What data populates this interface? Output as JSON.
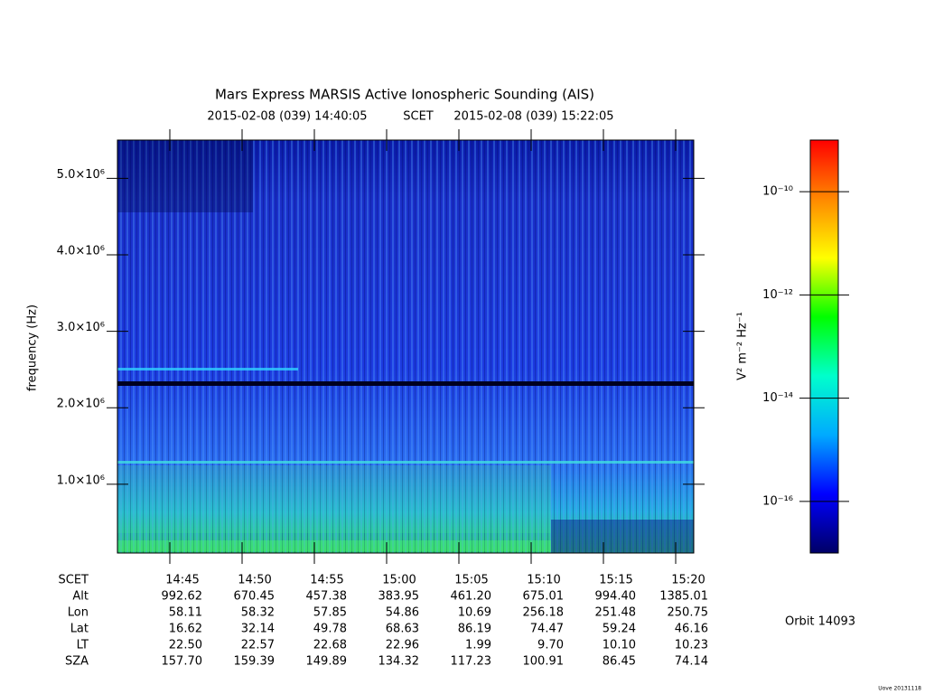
{
  "chart_data": {
    "type": "spectrogram",
    "title": "Mars Express MARSIS Active Ionospheric Sounding (AIS)",
    "start_time": "2015-02-08 (039) 14:40:05",
    "time_label": "SCET",
    "end_time": "2015-02-08 (039) 15:22:05",
    "ylabel": "frequency (Hz)",
    "ylim": [
      100000,
      5500000
    ],
    "yticks": [
      {
        "value": 1000000,
        "label": "1.0×10⁶"
      },
      {
        "value": 2000000,
        "label": "2.0×10⁶"
      },
      {
        "value": 3000000,
        "label": "3.0×10⁶"
      },
      {
        "value": 4000000,
        "label": "4.0×10⁶"
      },
      {
        "value": 5000000,
        "label": "5.0×10⁶"
      }
    ],
    "xticks": [
      "14:45",
      "14:50",
      "14:55",
      "15:00",
      "15:05",
      "15:10",
      "15:15",
      "15:20"
    ],
    "colorbar": {
      "label": "V² m⁻² Hz⁻¹",
      "log_scale": true,
      "clim": [
        1e-17,
        1e-09
      ],
      "ticks": [
        {
          "value": 1e-10,
          "label": "10⁻¹⁰"
        },
        {
          "value": 1e-12,
          "label": "10⁻¹²"
        },
        {
          "value": 1e-14,
          "label": "10⁻¹⁴"
        },
        {
          "value": 1e-16,
          "label": "10⁻¹⁶"
        }
      ],
      "colors": [
        "#000066",
        "#0000ff",
        "#00aaff",
        "#00ffcc",
        "#00ff00",
        "#ffff00",
        "#ff8800",
        "#ff0000"
      ]
    },
    "ephemeris": {
      "header": "SCET",
      "rows": [
        {
          "label": "Alt",
          "values": [
            "992.62",
            "670.45",
            "457.38",
            "383.95",
            "461.20",
            "675.01",
            "994.40",
            "1385.01"
          ]
        },
        {
          "label": "Lon",
          "values": [
            "58.11",
            "58.32",
            "57.85",
            "54.86",
            "10.69",
            "256.18",
            "251.48",
            "250.75"
          ]
        },
        {
          "label": "Lat",
          "values": [
            "16.62",
            "32.14",
            "49.78",
            "68.63",
            "86.19",
            "74.47",
            "59.24",
            "46.16"
          ]
        },
        {
          "label": "LT",
          "values": [
            "22.50",
            "22.57",
            "22.68",
            "22.96",
            "1.99",
            "9.70",
            "10.10",
            "10.23"
          ]
        },
        {
          "label": "SZA",
          "values": [
            "157.70",
            "159.39",
            "149.89",
            "134.32",
            "117.23",
            "100.91",
            "86.45",
            "74.14"
          ]
        }
      ]
    },
    "orbit": "Orbit 14093",
    "footer": "Uove 20131118"
  }
}
